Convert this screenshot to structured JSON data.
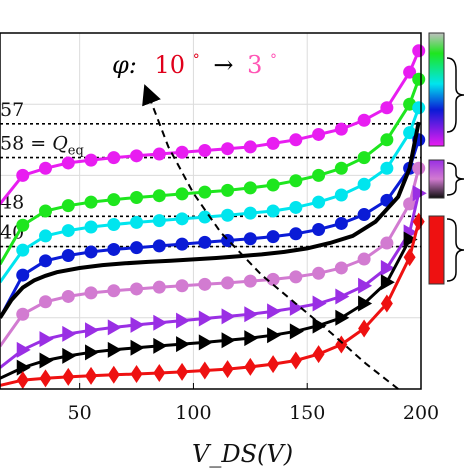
{
  "chart_data": {
    "type": "line",
    "xlabel": "V_DS(V)",
    "xlim": [
      15,
      200
    ],
    "ylim": [
      0,
      100
    ],
    "xticks": [
      50,
      100,
      150,
      200
    ],
    "xtick_labels": [
      "50",
      "100",
      "150",
      "200"
    ],
    "grid": true,
    "arrow_annotation": {
      "prefix": "φ:",
      "from": "10",
      "arrow": "→",
      "to": "3",
      "degree": "°",
      "from_color": "#e0001b",
      "to_color": "#ff55b5"
    },
    "reference_lines": [
      {
        "label": "57",
        "y": 74.5
      },
      {
        "label": "58 = Q_eq",
        "y": 65
      },
      {
        "label": "48",
        "y": 48.5
      },
      {
        "label": "40",
        "y": 40
      }
    ],
    "series": [
      {
        "color": "#e81df1",
        "marker": "circle",
        "x": [
          15,
          25,
          35,
          45,
          55,
          65,
          75,
          85,
          95,
          105,
          115,
          125,
          135,
          145,
          155,
          165,
          175,
          185,
          195,
          199
        ],
        "y": [
          52,
          60,
          62,
          63.5,
          64.3,
          65,
          65.5,
          66,
          66.5,
          67,
          67.5,
          68,
          69,
          70,
          71.5,
          73,
          75.5,
          79,
          89,
          95
        ]
      },
      {
        "color": "#1ee61e",
        "marker": "circle",
        "x": [
          15,
          25,
          35,
          45,
          55,
          65,
          75,
          85,
          95,
          105,
          115,
          125,
          135,
          145,
          155,
          165,
          175,
          185,
          195,
          199
        ],
        "y": [
          35,
          46,
          50,
          51.5,
          52.5,
          53.2,
          53.8,
          54.3,
          54.8,
          55.3,
          55.8,
          56.5,
          57.3,
          58.5,
          60,
          62,
          65,
          70,
          80,
          87
        ]
      },
      {
        "color": "#00e5ee",
        "marker": "circle",
        "x": [
          15,
          25,
          35,
          45,
          55,
          65,
          75,
          85,
          95,
          105,
          115,
          125,
          135,
          145,
          155,
          165,
          175,
          185,
          195,
          199
        ],
        "y": [
          30,
          39,
          43,
          44.5,
          45.5,
          46.2,
          46.8,
          47.3,
          47.8,
          48.3,
          48.8,
          49.4,
          50,
          51,
          52.5,
          54.5,
          57.5,
          62,
          72,
          79
        ]
      },
      {
        "color": "#0a1bd6",
        "marker": "circle",
        "x": [
          15,
          25,
          35,
          45,
          55,
          65,
          75,
          85,
          95,
          105,
          115,
          125,
          135,
          145,
          155,
          165,
          175,
          185,
          195,
          199
        ],
        "y": [
          20,
          32,
          36,
          37.5,
          38.5,
          39.2,
          39.7,
          40.2,
          40.7,
          41.2,
          41.7,
          42.2,
          42.8,
          43.6,
          44.8,
          46.5,
          49,
          53,
          62,
          70
        ]
      },
      {
        "color": "#000000",
        "marker": "none",
        "x": [
          15,
          20,
          25,
          30,
          35,
          40,
          50,
          60,
          70,
          80,
          90,
          100,
          110,
          120,
          130,
          140,
          150,
          160,
          170,
          180,
          190,
          195,
          199
        ],
        "y": [
          20,
          25,
          28.5,
          30.5,
          31.8,
          32.8,
          34,
          34.8,
          35.3,
          35.7,
          36,
          36.4,
          36.8,
          37.3,
          37.8,
          38.5,
          39.5,
          41,
          43,
          47,
          54,
          62,
          75
        ]
      },
      {
        "color": "#d27bd1",
        "marker": "circle",
        "x": [
          15,
          25,
          35,
          45,
          55,
          65,
          75,
          85,
          95,
          105,
          115,
          125,
          135,
          145,
          155,
          165,
          175,
          185,
          195,
          199
        ],
        "y": [
          12,
          21,
          24.5,
          26,
          27,
          27.6,
          28.1,
          28.6,
          29,
          29.4,
          29.8,
          30.3,
          30.8,
          31.5,
          32.5,
          34,
          36.5,
          41,
          52,
          62
        ]
      },
      {
        "color": "#9a2fe4",
        "marker": "triangle",
        "x": [
          15,
          25,
          35,
          45,
          55,
          65,
          75,
          85,
          95,
          105,
          115,
          125,
          135,
          145,
          155,
          165,
          175,
          185,
          195,
          199
        ],
        "y": [
          6,
          11,
          14,
          15.5,
          16.5,
          17.3,
          18,
          18.6,
          19.2,
          19.8,
          20.4,
          21,
          21.8,
          22.8,
          24,
          26,
          29,
          34,
          44,
          55
        ]
      },
      {
        "color": "#000000",
        "marker": "triangle",
        "x": [
          15,
          25,
          35,
          45,
          55,
          65,
          75,
          85,
          95,
          105,
          115,
          125,
          135,
          145,
          155,
          165,
          175,
          185,
          195
        ],
        "y": [
          3,
          6,
          8,
          9.3,
          10.3,
          11,
          11.6,
          12.1,
          12.6,
          13.1,
          13.7,
          14.3,
          15.1,
          16.2,
          17.8,
          20,
          24,
          30,
          42
        ]
      },
      {
        "color": "#ee1111",
        "marker": "diamond",
        "x": [
          15,
          25,
          35,
          45,
          55,
          65,
          75,
          85,
          95,
          105,
          115,
          125,
          135,
          145,
          155,
          165,
          175,
          185,
          195,
          199
        ],
        "y": [
          1,
          2.5,
          3,
          3.4,
          3.7,
          4,
          4.2,
          4.5,
          4.8,
          5.2,
          5.6,
          6.2,
          7,
          8,
          9.8,
          12.5,
          17,
          24,
          37,
          47
        ]
      }
    ],
    "trend_line": {
      "x": [
        190,
        176,
        160,
        145,
        130,
        112,
        100,
        89,
        80
      ],
      "y": [
        0,
        7,
        16,
        24,
        32,
        44,
        55,
        68,
        83
      ]
    },
    "colorbar_segments": [
      {
        "color": "#d7d7d7"
      },
      {
        "colors": [
          "#1ee61e",
          "#00e5ee",
          "#0a1bd6",
          "#e81df1"
        ]
      },
      {
        "colors": [
          "#9a2fe4",
          "#d27bd1",
          "#111111"
        ]
      },
      {
        "color": "#ee1111"
      }
    ]
  }
}
